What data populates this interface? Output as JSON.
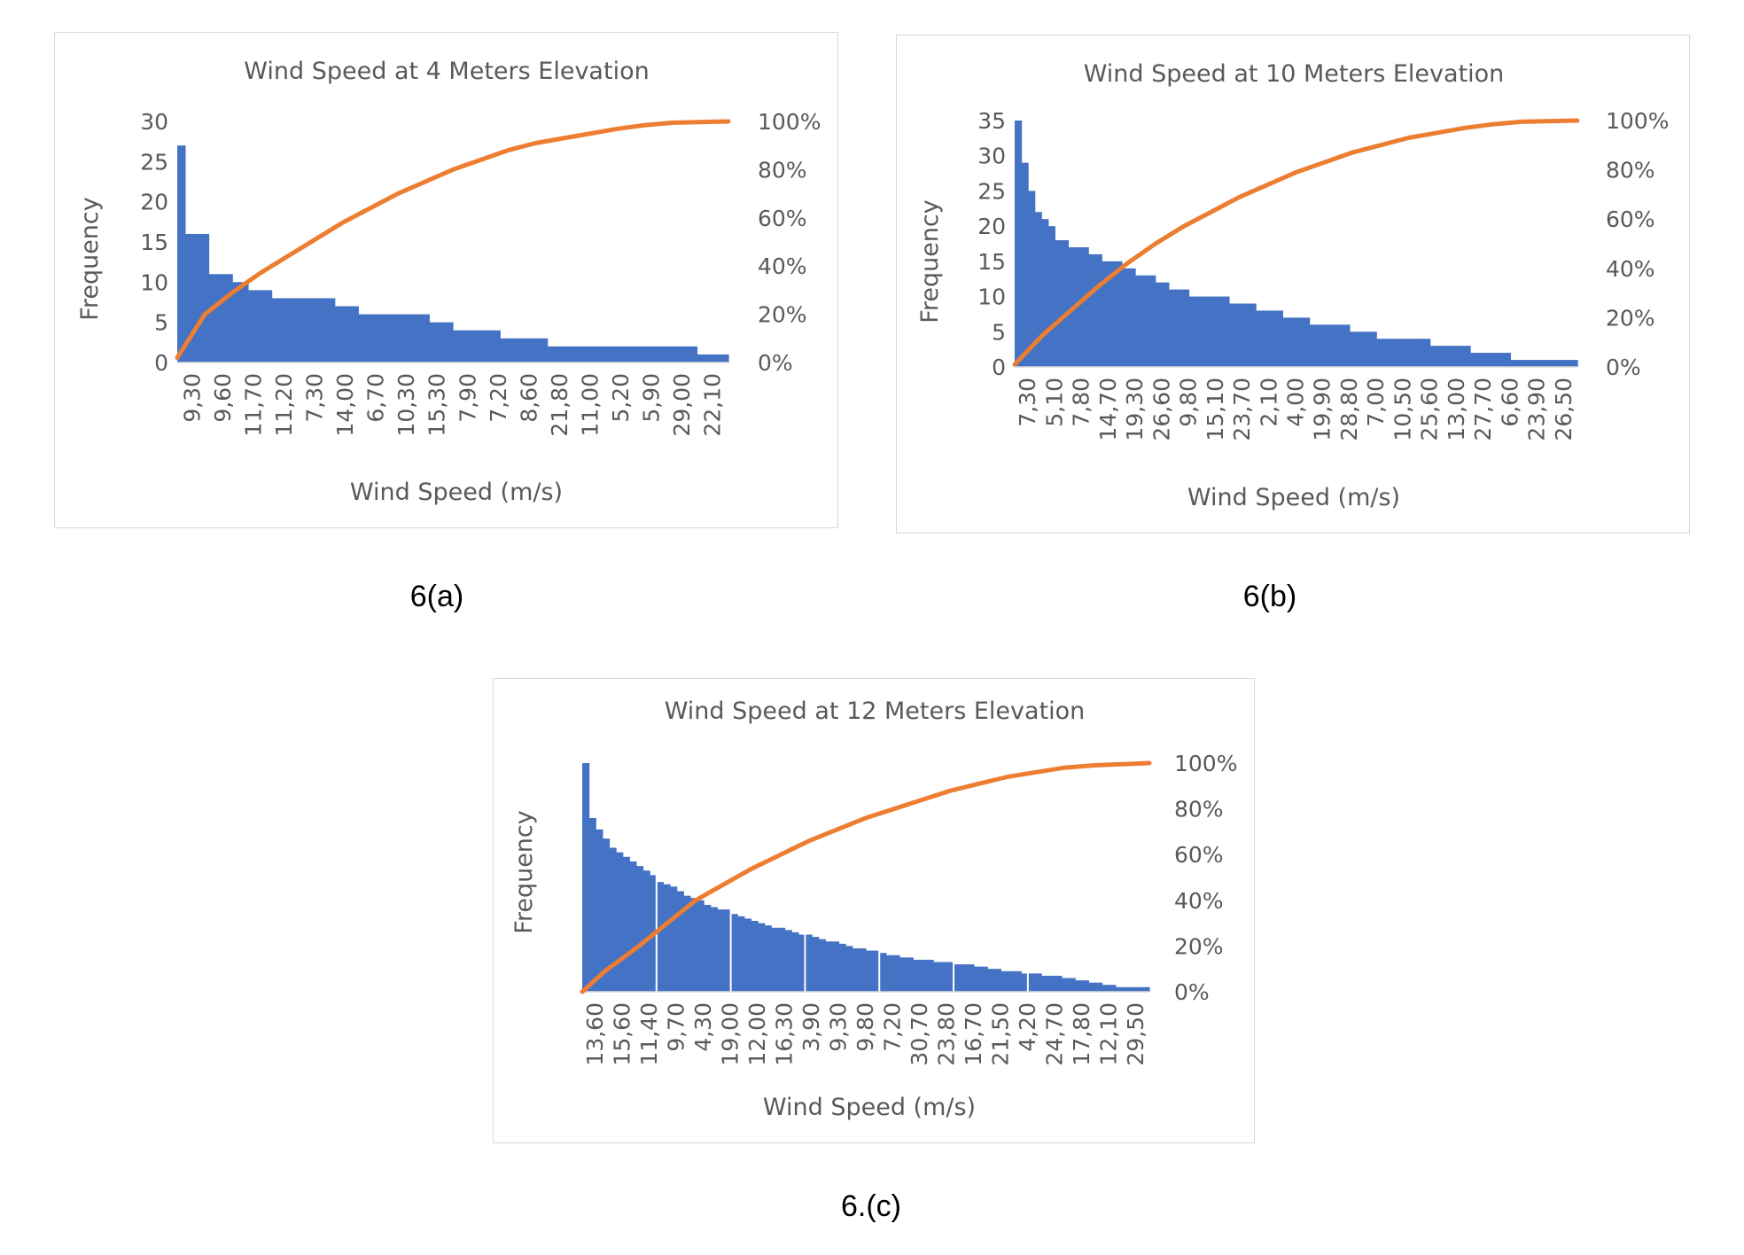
{
  "captions": {
    "a": "6(a)",
    "b": "6(b)",
    "c": "6.(c)"
  },
  "colors": {
    "bars": "#4472c4",
    "line": "#ed7d31",
    "text": "#595959"
  },
  "chart_data": [
    {
      "id": "a",
      "type": "bar",
      "title": "Wind Speed at 4 Meters Elevation",
      "xlabel": "Wind Speed (m/s)",
      "ylabel": "Frequency",
      "ylim": [
        0,
        30
      ],
      "y_ticks": [
        0,
        5,
        10,
        15,
        20,
        25,
        30
      ],
      "y2lim": [
        0,
        100
      ],
      "y2_ticks": [
        "0%",
        "20%",
        "40%",
        "60%",
        "80%",
        "100%"
      ],
      "categories": [
        "9,30",
        "9,60",
        "11,70",
        "11,20",
        "7,30",
        "14,00",
        "6,70",
        "10,30",
        "15,30",
        "7,90",
        "7,20",
        "8,60",
        "21,80",
        "11,00",
        "5,20",
        "5,90",
        "29,00",
        "22,10"
      ],
      "bar_profile": [
        27,
        16,
        16,
        16,
        11,
        11,
        11,
        10,
        10,
        9,
        9,
        9,
        8,
        8,
        8,
        8,
        8,
        8,
        8,
        8,
        7,
        7,
        7,
        6,
        6,
        6,
        6,
        6,
        6,
        6,
        6,
        6,
        5,
        5,
        5,
        4,
        4,
        4,
        4,
        4,
        4,
        3,
        3,
        3,
        3,
        3,
        3,
        2,
        2,
        2,
        2,
        2,
        2,
        2,
        2,
        2,
        2,
        2,
        2,
        2,
        2,
        2,
        2,
        2,
        2,
        2,
        1,
        1,
        1,
        1
      ],
      "cumulative": [
        [
          0,
          2
        ],
        [
          5,
          20
        ],
        [
          10,
          29
        ],
        [
          15,
          37
        ],
        [
          20,
          44
        ],
        [
          25,
          51
        ],
        [
          30,
          58
        ],
        [
          35,
          64
        ],
        [
          40,
          70
        ],
        [
          45,
          75
        ],
        [
          50,
          80
        ],
        [
          55,
          84
        ],
        [
          60,
          88
        ],
        [
          65,
          91
        ],
        [
          70,
          93
        ],
        [
          75,
          95
        ],
        [
          80,
          97
        ],
        [
          85,
          98.5
        ],
        [
          90,
          99.5
        ],
        [
          100,
          100
        ]
      ],
      "grid": false,
      "legend": "none"
    },
    {
      "id": "b",
      "type": "bar",
      "title": "Wind Speed at 10 Meters Elevation",
      "xlabel": "Wind Speed (m/s)",
      "ylabel": "Frequency",
      "ylim": [
        0,
        35
      ],
      "y_ticks": [
        0,
        5,
        10,
        15,
        20,
        25,
        30,
        35
      ],
      "y2lim": [
        0,
        100
      ],
      "y2_ticks": [
        "0%",
        "20%",
        "40%",
        "60%",
        "80%",
        "100%"
      ],
      "categories": [
        "7,30",
        "5,10",
        "7,80",
        "14,70",
        "19,30",
        "26,60",
        "9,80",
        "15,10",
        "23,70",
        "2,10",
        "4,00",
        "19,90",
        "28,80",
        "7,00",
        "10,50",
        "25,60",
        "13,00",
        "27,70",
        "6,60",
        "23,90",
        "26,50"
      ],
      "bar_profile": [
        35,
        29,
        25,
        22,
        21,
        20,
        18,
        18,
        17,
        17,
        17,
        16,
        16,
        15,
        15,
        15,
        14,
        14,
        13,
        13,
        13,
        12,
        12,
        11,
        11,
        11,
        10,
        10,
        10,
        10,
        10,
        10,
        9,
        9,
        9,
        9,
        8,
        8,
        8,
        8,
        7,
        7,
        7,
        7,
        6,
        6,
        6,
        6,
        6,
        6,
        5,
        5,
        5,
        5,
        4,
        4,
        4,
        4,
        4,
        4,
        4,
        4,
        3,
        3,
        3,
        3,
        3,
        3,
        2,
        2,
        2,
        2,
        2,
        2,
        1,
        1,
        1,
        1,
        1,
        1,
        1,
        1,
        1,
        1
      ],
      "cumulative": [
        [
          0,
          1
        ],
        [
          5,
          13
        ],
        [
          10,
          23
        ],
        [
          15,
          33
        ],
        [
          20,
          42
        ],
        [
          25,
          50
        ],
        [
          30,
          57
        ],
        [
          35,
          63
        ],
        [
          40,
          69
        ],
        [
          45,
          74
        ],
        [
          50,
          79
        ],
        [
          55,
          83
        ],
        [
          60,
          87
        ],
        [
          65,
          90
        ],
        [
          70,
          93
        ],
        [
          75,
          95
        ],
        [
          80,
          97
        ],
        [
          85,
          98.5
        ],
        [
          90,
          99.5
        ],
        [
          100,
          100
        ]
      ],
      "grid": false,
      "legend": "none"
    },
    {
      "id": "c",
      "type": "bar",
      "title": "Wind Speed at 12 Meters Elevation",
      "xlabel": "Wind Speed (m/s)",
      "ylabel": "Frequency",
      "ylim": [
        0,
        100
      ],
      "y_ticks": [],
      "y2lim": [
        0,
        100
      ],
      "y2_ticks": [
        "0%",
        "20%",
        "40%",
        "60%",
        "80%",
        "100%"
      ],
      "categories": [
        "13,60",
        "15,60",
        "11,40",
        "9,70",
        "4,30",
        "19,00",
        "12,00",
        "16,30",
        "3,90",
        "9,30",
        "9,80",
        "7,20",
        "30,70",
        "23,80",
        "16,70",
        "21,50",
        "4,20",
        "24,70",
        "17,80",
        "12,10",
        "29,50"
      ],
      "bar_profile": [
        100,
        76,
        71,
        67,
        63,
        61,
        59,
        57,
        55,
        53,
        51,
        48,
        47,
        46,
        44,
        42,
        41,
        40,
        38,
        37,
        36,
        36,
        34,
        33,
        32,
        31,
        30,
        29,
        28,
        28,
        27,
        26,
        25,
        25,
        24,
        23,
        22,
        22,
        21,
        20,
        19,
        19,
        18,
        18,
        17,
        16,
        16,
        15,
        15,
        14,
        14,
        14,
        13,
        13,
        13,
        12,
        12,
        12,
        11,
        11,
        10,
        10,
        9,
        9,
        9,
        8,
        8,
        8,
        7,
        7,
        7,
        6,
        6,
        5,
        5,
        4,
        4,
        3,
        3,
        2,
        2,
        2,
        2,
        2
      ],
      "bar_dividers": [
        11,
        22,
        33,
        44,
        55,
        66
      ],
      "cumulative": [
        [
          0,
          0
        ],
        [
          4,
          9
        ],
        [
          10,
          20
        ],
        [
          15,
          30
        ],
        [
          20,
          40
        ],
        [
          25,
          47
        ],
        [
          30,
          54
        ],
        [
          35,
          60
        ],
        [
          40,
          66
        ],
        [
          45,
          71
        ],
        [
          50,
          76
        ],
        [
          55,
          80
        ],
        [
          60,
          84
        ],
        [
          65,
          88
        ],
        [
          70,
          91
        ],
        [
          75,
          94
        ],
        [
          80,
          96
        ],
        [
          85,
          98
        ],
        [
          90,
          99
        ],
        [
          100,
          100
        ]
      ],
      "grid": false,
      "legend": "none"
    }
  ]
}
